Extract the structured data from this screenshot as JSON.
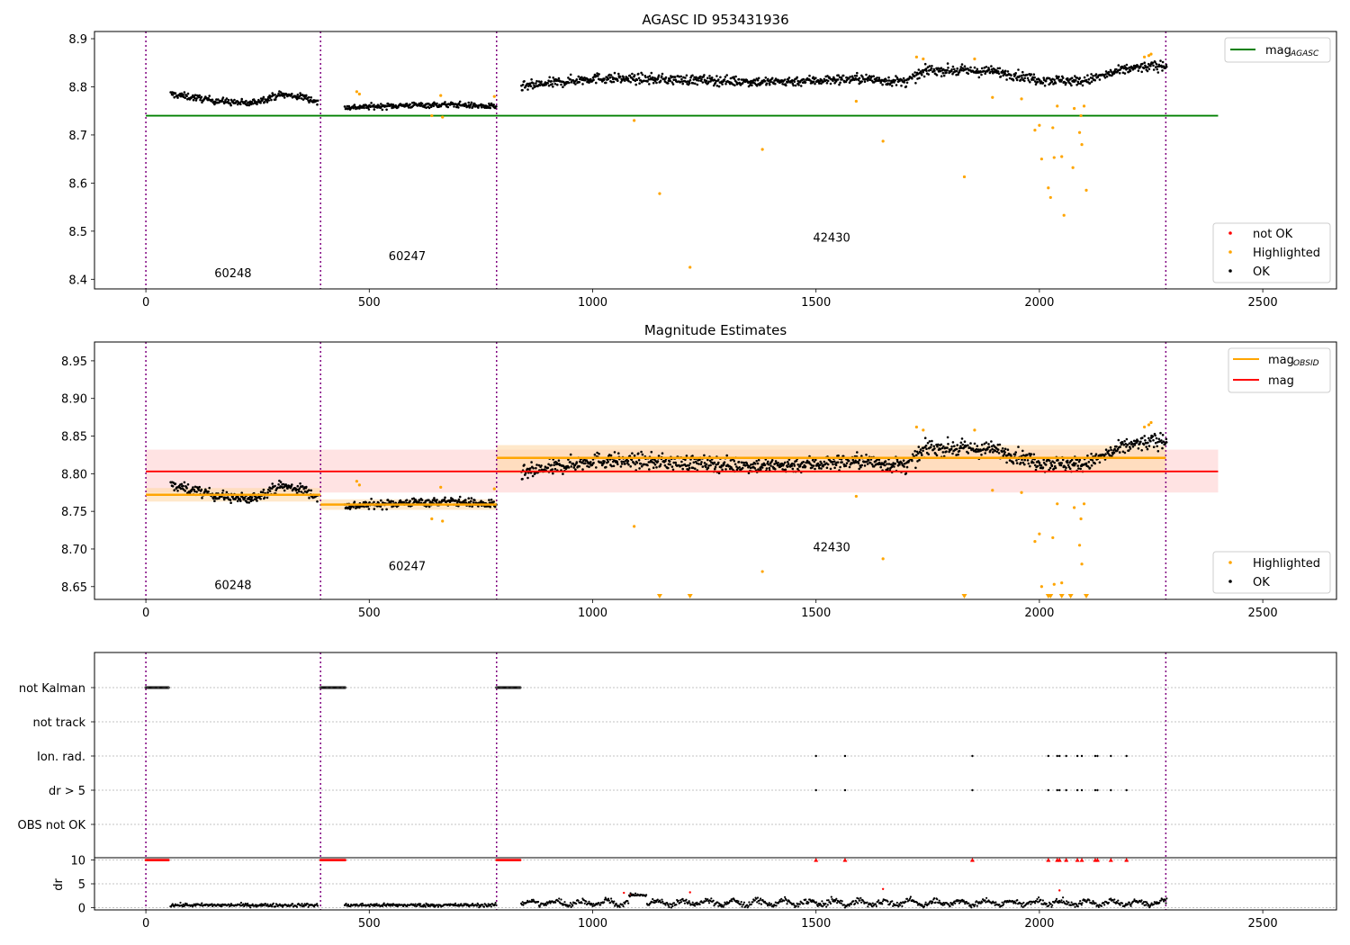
{
  "chart_data": [
    {
      "type": "scatter",
      "title": "AGASC ID 953431936",
      "xlim": [
        -115,
        2665
      ],
      "ylim": [
        8.38,
        8.915
      ],
      "xticks": [
        0,
        500,
        1000,
        1500,
        2000,
        2500
      ],
      "yticks": [
        8.4,
        8.5,
        8.6,
        8.7,
        8.8,
        8.9
      ],
      "ytick_labels": [
        "8.4",
        "8.5",
        "8.6",
        "8.7",
        "8.8",
        "8.9"
      ],
      "obs_boundaries": [
        0,
        391,
        785,
        2283
      ],
      "obsid_labels": [
        {
          "text": "60248",
          "x": 195,
          "y": 8.404
        },
        {
          "text": "60247",
          "x": 585,
          "y": 8.44
        },
        {
          "text": "42430",
          "x": 1535,
          "y": 8.478
        }
      ],
      "reference_line": {
        "name": "mag_AGASC",
        "value": 8.74,
        "x_range": [
          0,
          2400
        ],
        "color": "#008000"
      },
      "legend_top": [
        {
          "label": "mag",
          "sub": "AGASC",
          "color": "#008000"
        }
      ],
      "legend_bottom": [
        {
          "label": "not OK",
          "color": "#ff0000"
        },
        {
          "label": "Highlighted",
          "color": "#ffa500"
        },
        {
          "label": "OK",
          "color": "#000000"
        }
      ],
      "ok_segments": [
        {
          "x": [
            55,
            385
          ],
          "trend": [
            [
              55,
              8.785
            ],
            [
              150,
              8.772
            ],
            [
              230,
              8.765
            ],
            [
              300,
              8.784
            ],
            [
              360,
              8.778
            ],
            [
              385,
              8.767
            ]
          ],
          "spread": 0.012
        },
        {
          "x": [
            445,
            785
          ],
          "trend": [
            [
              445,
              8.757
            ],
            [
              600,
              8.762
            ],
            [
              700,
              8.763
            ],
            [
              785,
              8.758
            ]
          ],
          "spread": 0.01
        },
        {
          "x": [
            840,
            2285
          ],
          "trend": [
            [
              840,
              8.8
            ],
            [
              1000,
              8.818
            ],
            [
              1200,
              8.815
            ],
            [
              1400,
              8.81
            ],
            [
              1600,
              8.817
            ],
            [
              1700,
              8.81
            ],
            [
              1750,
              8.835
            ],
            [
              1900,
              8.832
            ],
            [
              2000,
              8.815
            ],
            [
              2100,
              8.812
            ],
            [
              2200,
              8.838
            ],
            [
              2285,
              8.845
            ]
          ],
          "spread": 0.018
        }
      ],
      "highlighted_points": [
        [
          472,
          8.79
        ],
        [
          478,
          8.785
        ],
        [
          640,
          8.74
        ],
        [
          660,
          8.782
        ],
        [
          664,
          8.737
        ],
        [
          780,
          8.78
        ],
        [
          1093,
          8.73
        ],
        [
          1150,
          8.578
        ],
        [
          1218,
          8.425
        ],
        [
          1380,
          8.67
        ],
        [
          1590,
          8.77
        ],
        [
          1650,
          8.687
        ],
        [
          1725,
          8.862
        ],
        [
          1740,
          8.858
        ],
        [
          1832,
          8.613
        ],
        [
          1855,
          8.858
        ],
        [
          1895,
          8.778
        ],
        [
          1960,
          8.775
        ],
        [
          1990,
          8.71
        ],
        [
          2000,
          8.72
        ],
        [
          2005,
          8.65
        ],
        [
          2020,
          8.59
        ],
        [
          2025,
          8.57
        ],
        [
          2030,
          8.715
        ],
        [
          2033,
          8.653
        ],
        [
          2040,
          8.76
        ],
        [
          2050,
          8.655
        ],
        [
          2055,
          8.533
        ],
        [
          2075,
          8.632
        ],
        [
          2078,
          8.755
        ],
        [
          2090,
          8.705
        ],
        [
          2093,
          8.74
        ],
        [
          2095,
          8.68
        ],
        [
          2100,
          8.76
        ],
        [
          2105,
          8.585
        ],
        [
          2235,
          8.862
        ],
        [
          2245,
          8.865
        ],
        [
          2250,
          8.868
        ]
      ]
    },
    {
      "type": "scatter",
      "title": "Magnitude Estimates",
      "xlim": [
        -115,
        2665
      ],
      "ylim": [
        8.633,
        8.975
      ],
      "xticks": [
        0,
        500,
        1000,
        1500,
        2000,
        2500
      ],
      "yticks": [
        8.65,
        8.7,
        8.75,
        8.8,
        8.85,
        8.9,
        8.95
      ],
      "ytick_labels": [
        "8.65",
        "8.70",
        "8.75",
        "8.80",
        "8.85",
        "8.90",
        "8.95"
      ],
      "obs_boundaries": [
        0,
        391,
        785,
        2283
      ],
      "obsid_labels": [
        {
          "text": "60248",
          "x": 195,
          "y": 8.647
        },
        {
          "text": "60247",
          "x": 585,
          "y": 8.672
        },
        {
          "text": "42430",
          "x": 1535,
          "y": 8.697
        }
      ],
      "mag_line": {
        "value": 8.803,
        "band": [
          8.775,
          8.832
        ],
        "x_range": [
          0,
          2400
        ],
        "color": "#ff0000"
      },
      "obsid_mags": [
        {
          "x": [
            0,
            391
          ],
          "value": 8.772,
          "band": [
            8.763,
            8.781
          ]
        },
        {
          "x": [
            391,
            785
          ],
          "value": 8.759,
          "band": [
            8.752,
            8.766
          ]
        },
        {
          "x": [
            785,
            2283
          ],
          "value": 8.821,
          "band": [
            8.8,
            8.838
          ]
        }
      ],
      "legend_top": [
        {
          "label": "mag",
          "sub": "OBSID",
          "color": "#ffa500"
        },
        {
          "label": "mag",
          "sub": "",
          "color": "#ff0000"
        }
      ],
      "legend_bottom": [
        {
          "label": "Highlighted",
          "color": "#ffa500"
        },
        {
          "label": "OK",
          "color": "#000000"
        }
      ],
      "clipped_low_x": [
        1150,
        1218,
        1832,
        2020,
        2025,
        2050,
        2070,
        2105
      ]
    },
    {
      "type": "scatter",
      "category_labels": [
        "not Kalman",
        "not track",
        "Ion. rad.",
        "dr > 5",
        "OBS not OK"
      ],
      "flag_runs": [
        {
          "flag": "not Kalman",
          "x": [
            0,
            52
          ]
        },
        {
          "flag": "not Kalman",
          "x": [
            391,
            448
          ]
        },
        {
          "flag": "not Kalman",
          "x": [
            785,
            840
          ]
        }
      ],
      "flag_points": [
        {
          "flag": "Ion. rad.",
          "x": [
            1500,
            1565,
            1850,
            2020,
            2040,
            2045,
            2060,
            2085,
            2095,
            2125,
            2130,
            2160,
            2195
          ]
        },
        {
          "flag": "dr > 5",
          "x": [
            1500,
            1565,
            1850,
            2020,
            2040,
            2045,
            2060,
            2085,
            2095,
            2125,
            2130,
            2160,
            2195
          ]
        }
      ],
      "dr_ylim": [
        -0.5,
        10.5
      ],
      "dr_yticks": [
        0,
        5,
        10
      ],
      "dr_ytick_labels": [
        "0",
        "5",
        "10"
      ],
      "dr_ylabel": "dr",
      "dr_clipped_x": [
        1500,
        1565,
        1850,
        2020,
        2040,
        2045,
        2060,
        2085,
        2095,
        2125,
        2130,
        2160,
        2195
      ],
      "dr_red_points": [
        [
          1070,
          3.1
        ],
        [
          1085,
          2.8
        ],
        [
          1218,
          3.2
        ],
        [
          1650,
          3.9
        ],
        [
          2045,
          3.6
        ]
      ],
      "xticks": [
        0,
        500,
        1000,
        1500,
        2000,
        2500
      ]
    }
  ],
  "colors": {
    "ok": "#000000",
    "highlighted": "#ffa500",
    "not_ok": "#ff0000",
    "boundary": "#800080",
    "grid": "#b0b0b0"
  }
}
